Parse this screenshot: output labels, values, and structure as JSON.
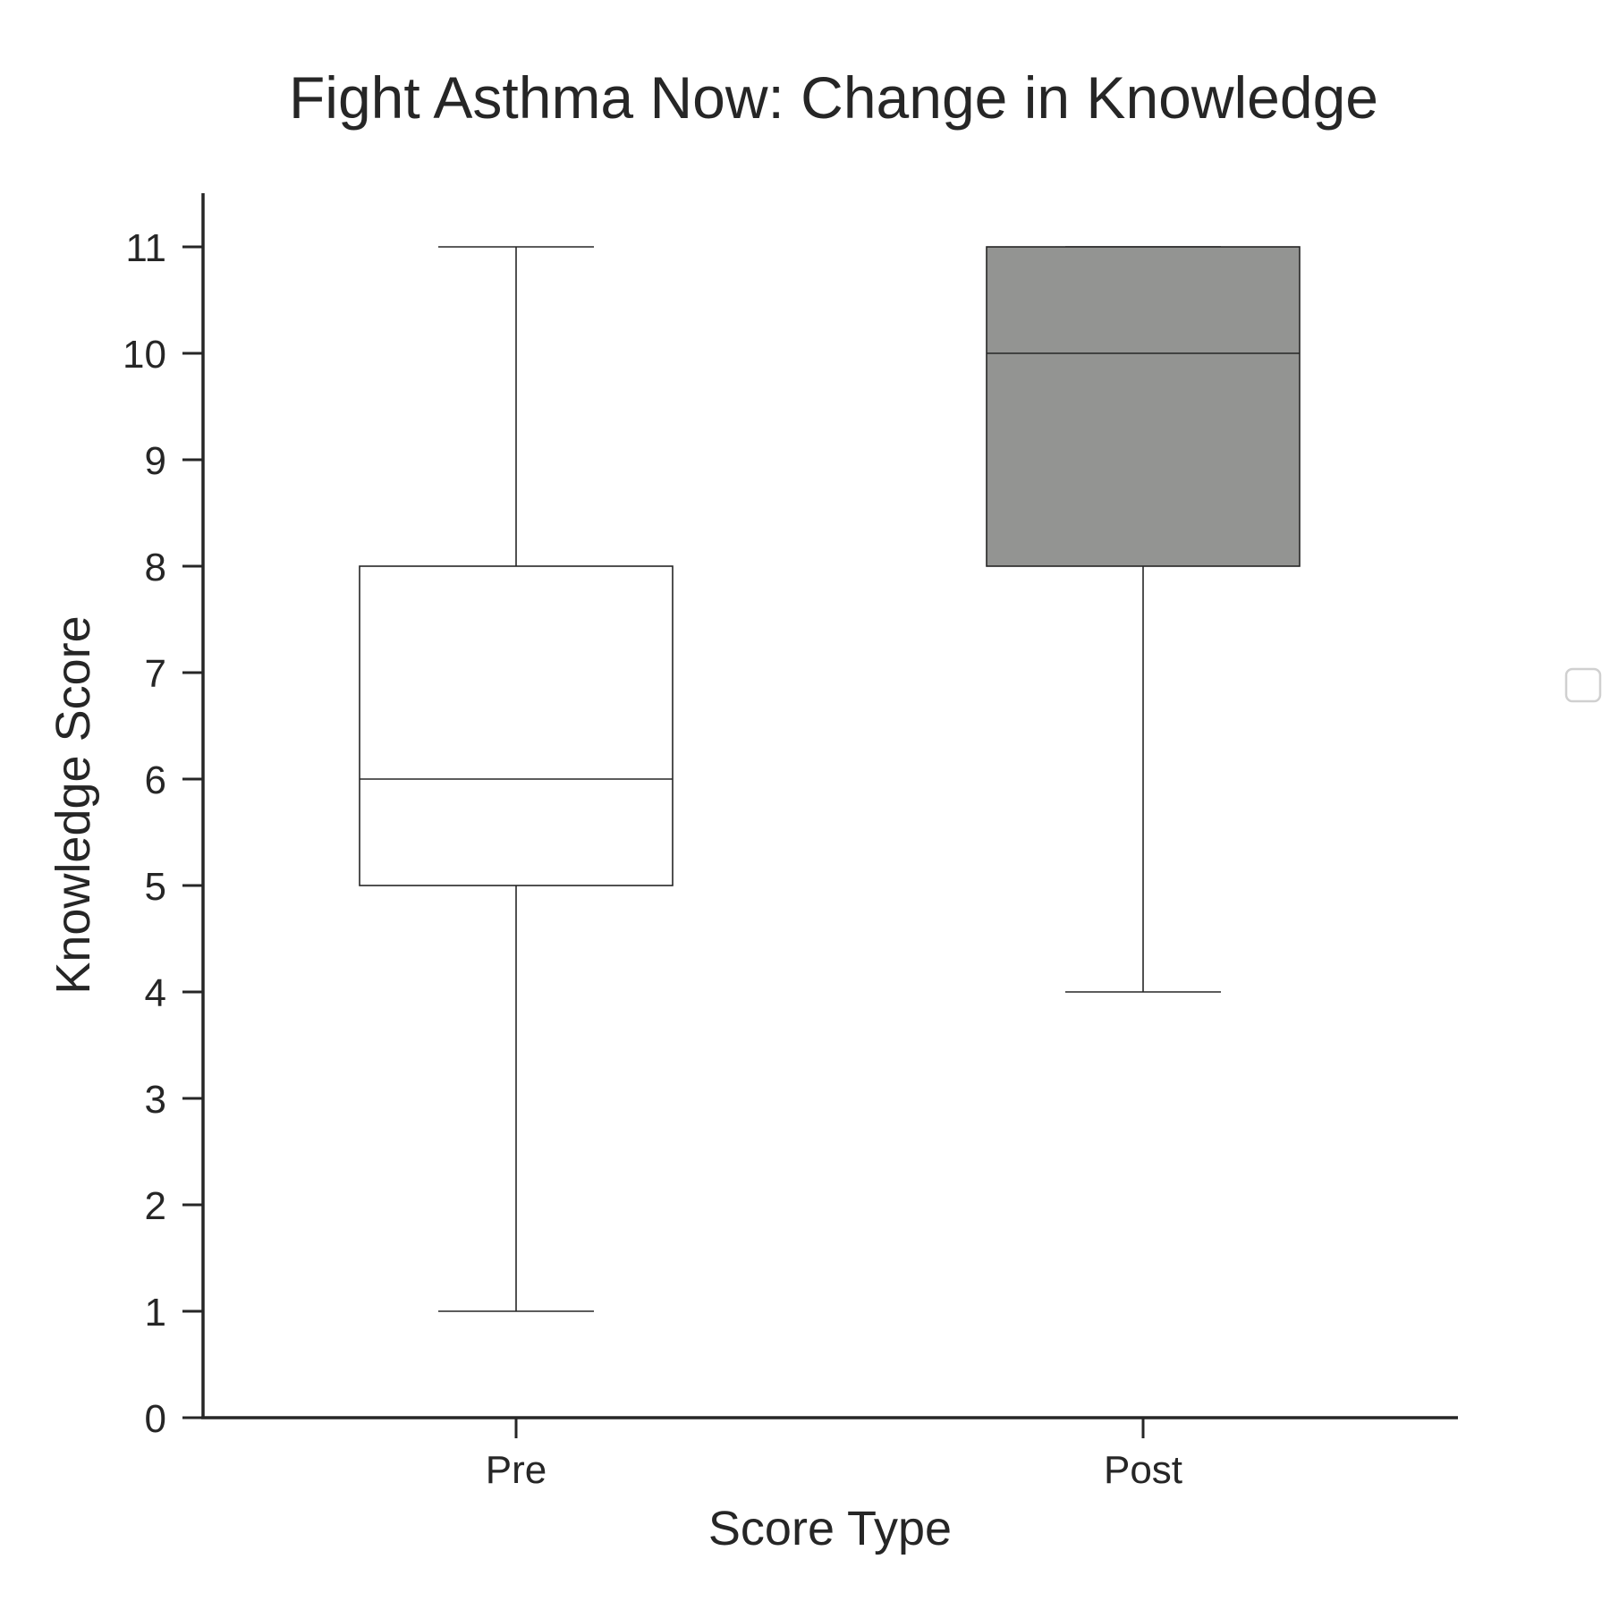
{
  "chart_data": {
    "type": "box",
    "title": "Fight Asthma Now: Change in Knowledge",
    "xlabel": "Score Type",
    "ylabel": "Knowledge Score",
    "categories": [
      "Pre",
      "Post"
    ],
    "ylim": [
      0,
      11.5
    ],
    "yticks": [
      0,
      1,
      2,
      3,
      4,
      5,
      6,
      7,
      8,
      9,
      10,
      11
    ],
    "boxes": [
      {
        "category": "Pre",
        "min": 1,
        "q1": 5,
        "median": 6,
        "q3": 8,
        "max": 11,
        "color": "#ffffff"
      },
      {
        "category": "Post",
        "min": 4,
        "q1": 8,
        "median": 10,
        "q3": 11,
        "max": 11,
        "color": "#939492"
      }
    ],
    "grid": false,
    "legend": {
      "placement": "right",
      "entries": []
    }
  }
}
